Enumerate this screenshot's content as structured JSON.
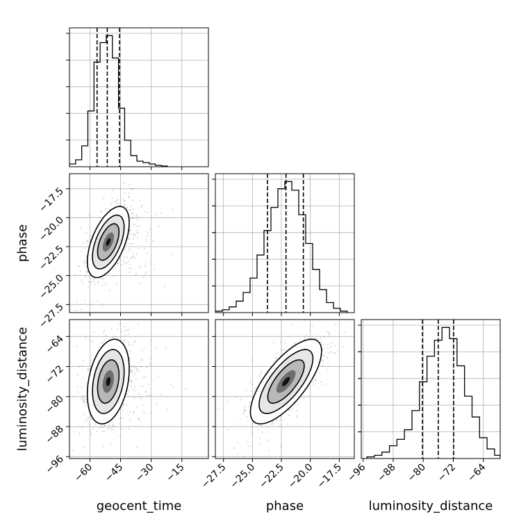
{
  "chart_data": {
    "type": "corner",
    "parameters": [
      "geocent_time",
      "phase",
      "luminosity_distance"
    ],
    "ranges": {
      "geocent_time": [
        -70,
        -2
      ],
      "phase": [
        -28.2,
        -16.2
      ],
      "luminosity_distance": [
        -96.5,
        -59.5
      ]
    },
    "ticks": {
      "geocent_time": [
        -60,
        -45,
        -30,
        -15
      ],
      "phase": [
        -27.5,
        -25.0,
        -22.5,
        -20.0,
        -17.5
      ],
      "luminosity_distance": [
        -96,
        -88,
        -80,
        -72,
        -64
      ]
    },
    "tick_labels": {
      "geocent_time": [
        "−60",
        "−45",
        "−30",
        "−15"
      ],
      "phase": [
        "−27.5",
        "−25.0",
        "−22.5",
        "−20.0",
        "−17.5"
      ],
      "luminosity_distance": [
        "−96",
        "−88",
        "−80",
        "−72",
        "−64"
      ]
    },
    "quantiles": {
      "geocent_time": [
        -56.5,
        -51.5,
        -45.5
      ],
      "phase": [
        -23.7,
        -22.1,
        -20.6
      ],
      "luminosity_distance": [
        -80.2,
        -76.0,
        -71.9
      ]
    },
    "histograms": {
      "geocent_time": {
        "edges": [
          -70,
          -67,
          -64,
          -61,
          -58,
          -55,
          -52,
          -49,
          -46,
          -43,
          -40,
          -37,
          -34,
          -31,
          -28,
          -25,
          -22
        ],
        "counts": [
          2,
          5,
          15,
          40,
          75,
          89,
          94,
          78,
          42,
          19,
          8,
          4,
          3,
          2,
          1,
          0.5
        ]
      },
      "phase": {
        "edges": [
          -28.2,
          -27.6,
          -27.0,
          -26.4,
          -25.8,
          -25.2,
          -24.6,
          -24.0,
          -23.4,
          -22.8,
          -22.2,
          -21.6,
          -21.0,
          -20.4,
          -19.8,
          -19.2,
          -18.6,
          -18.0,
          -17.4,
          -16.8
        ],
        "counts": [
          1,
          2,
          4,
          8,
          14,
          24,
          40,
          57,
          73,
          86,
          91,
          85,
          68,
          48,
          30,
          16,
          7,
          3,
          1
        ]
      },
      "luminosity_distance": {
        "edges": [
          -95,
          -93,
          -91,
          -89,
          -87,
          -85,
          -83,
          -81,
          -79,
          -77,
          -75,
          -73,
          -71,
          -69,
          -67,
          -65,
          -63,
          -61,
          -59.5
        ],
        "counts": [
          1,
          2,
          4,
          8,
          12,
          18,
          30,
          48,
          64,
          74,
          82,
          75,
          58,
          39,
          26,
          13,
          6,
          2
        ]
      }
    },
    "pairs": [
      {
        "x": "geocent_time",
        "y": "phase",
        "mean": [
          -51,
          -22.1
        ],
        "std": [
          5,
          1.5
        ],
        "corr": 0.55
      },
      {
        "x": "geocent_time",
        "y": "luminosity_distance",
        "mean": [
          -51,
          -76
        ],
        "std": [
          5,
          5.5
        ],
        "corr": 0.3
      },
      {
        "x": "phase",
        "y": "luminosity_distance",
        "mean": [
          -22.1,
          -76
        ],
        "std": [
          1.5,
          5.5
        ],
        "corr": 0.72
      }
    ],
    "grid": true
  }
}
